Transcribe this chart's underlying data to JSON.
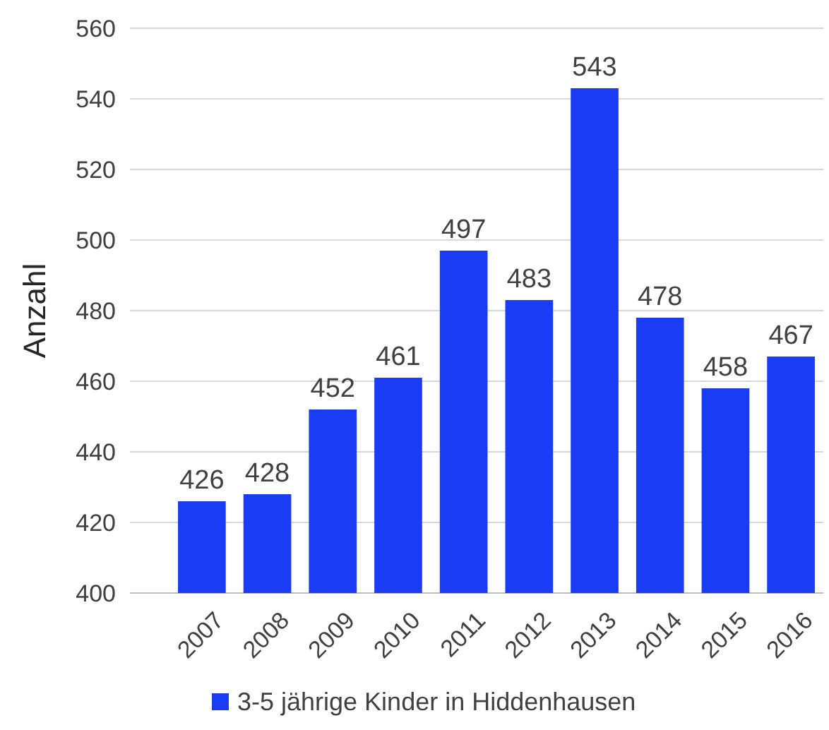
{
  "chart_data": {
    "type": "bar",
    "ylabel": "Anzahl",
    "categories": [
      "2007",
      "2008",
      "2009",
      "2010",
      "2011",
      "2012",
      "2013",
      "2014",
      "2015",
      "2016"
    ],
    "series": [
      {
        "name": "3-5 jährige Kinder in Hiddenhausen",
        "color": "#1a3cf5",
        "values": [
          426,
          428,
          452,
          461,
          497,
          483,
          543,
          478,
          458,
          467
        ]
      }
    ],
    "ylim": [
      400,
      560
    ],
    "yticks": [
      400,
      420,
      440,
      460,
      480,
      500,
      520,
      540,
      560
    ],
    "grid": "y",
    "data_labels": true,
    "legend": "bottom"
  }
}
